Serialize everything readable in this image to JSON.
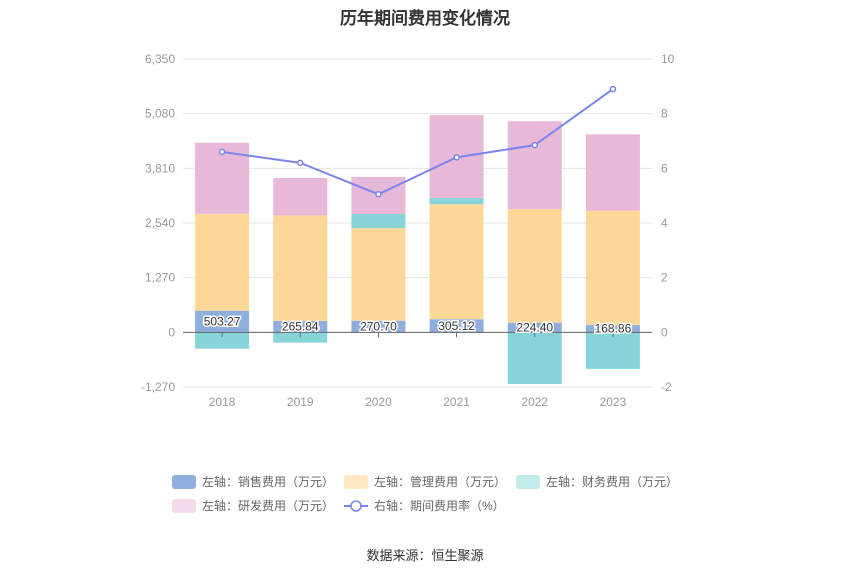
{
  "title": "历年期间费用变化情况",
  "source": "数据来源：恒生聚源",
  "chart_data": {
    "type": "bar",
    "stacked": true,
    "categories": [
      "2018",
      "2019",
      "2020",
      "2021",
      "2022",
      "2023"
    ],
    "left_axis": {
      "min": -1270,
      "max": 6350,
      "ticks": [
        "-1,270",
        "0",
        "1,270",
        "2,540",
        "3,810",
        "5,080",
        "6,350"
      ]
    },
    "right_axis": {
      "min": -2,
      "max": 10,
      "ticks": [
        "-2",
        "0",
        "2",
        "4",
        "6",
        "8",
        "10"
      ]
    },
    "series": [
      {
        "name": "左轴：销售费用（万元）",
        "axis": "left",
        "type": "bar",
        "color": "#8eaedd",
        "legend_color": "#8eaedd",
        "values": [
          503.27,
          265.84,
          270.7,
          305.12,
          224.4,
          168.86
        ],
        "labels": [
          "503.27",
          "265.84",
          "270.70",
          "305.12",
          "224.40",
          "168.86"
        ]
      },
      {
        "name": "左轴：管理费用（万元）",
        "axis": "left",
        "type": "bar",
        "color": "#ffd899",
        "legend_color": "#ffe8c2",
        "values": [
          2250,
          2450,
          2150,
          2670,
          2640,
          2660
        ]
      },
      {
        "name": "左轴：财务费用（万元）",
        "axis": "left",
        "type": "bar",
        "color": "#87d5d8",
        "legend_color": "#c2ebec",
        "values": [
          -380,
          -240,
          330,
          150,
          -1200,
          -850
        ]
      },
      {
        "name": "左轴：研发费用（万元）",
        "axis": "left",
        "type": "bar",
        "color": "#e8b8d8",
        "legend_color": "#f3dbeb",
        "values": [
          1650,
          870,
          860,
          1920,
          2040,
          1770
        ]
      },
      {
        "name": "右轴：期间费用率（%）",
        "axis": "right",
        "type": "line",
        "color": "#7b83ef",
        "values": [
          6.6,
          6.2,
          5.05,
          6.4,
          6.85,
          8.9
        ]
      }
    ]
  }
}
